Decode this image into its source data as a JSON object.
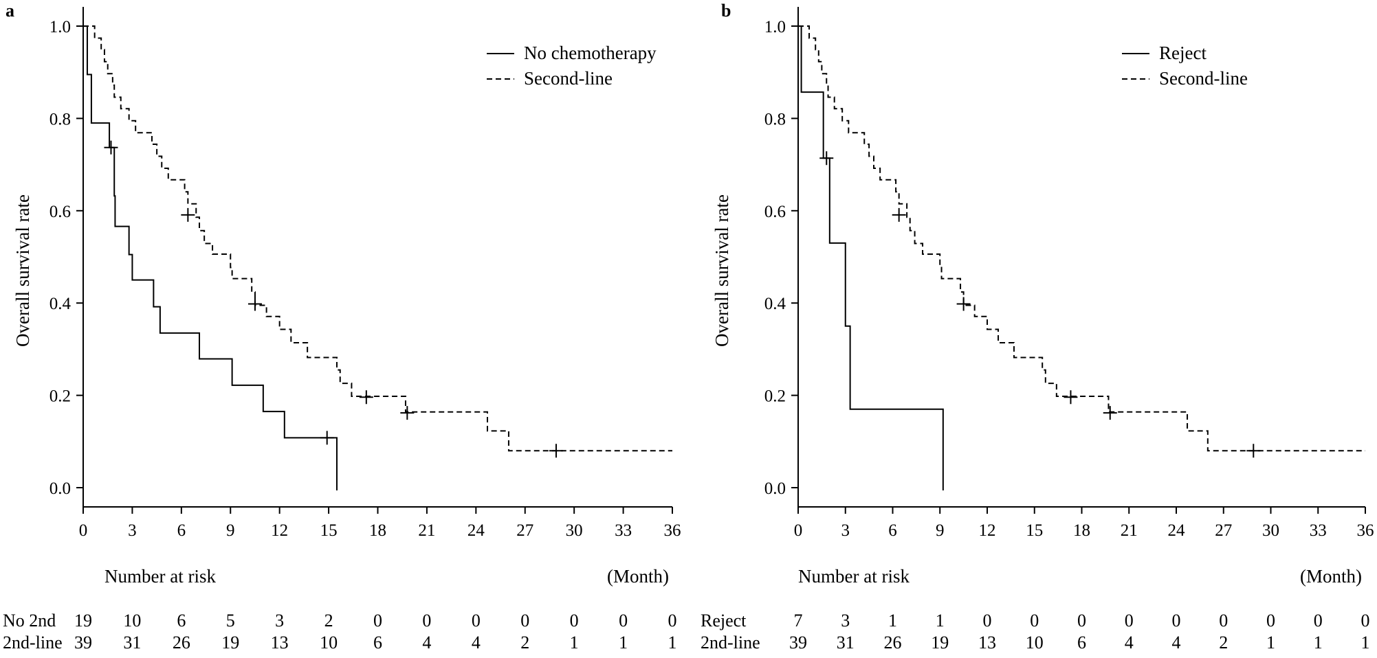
{
  "chart_data": [
    {
      "type": "line",
      "subtype": "kaplan-meier",
      "panel": "a",
      "ylabel": "Overall survival rate",
      "xunit": "(Month)",
      "xlim": [
        0,
        36
      ],
      "ylim": [
        0.0,
        1.0
      ],
      "xticks": [
        "0",
        "3",
        "6",
        "9",
        "12",
        "15",
        "18",
        "21",
        "24",
        "27",
        "30",
        "33",
        "36"
      ],
      "yticks": [
        "0.0",
        "0.2",
        "0.4",
        "0.6",
        "0.8",
        "1.0"
      ],
      "series": [
        {
          "name": "No chemotherapy",
          "style": "solid",
          "steps": [
            [
              0,
              1.0
            ],
            [
              0.25,
              0.895
            ],
            [
              0.5,
              0.79
            ],
            [
              1.6,
              0.737
            ],
            [
              1.9,
              0.632
            ],
            [
              1.95,
              0.566
            ],
            [
              2.8,
              0.505
            ],
            [
              3.0,
              0.45
            ],
            [
              4.3,
              0.392
            ],
            [
              4.7,
              0.335
            ],
            [
              7.1,
              0.279
            ],
            [
              9.1,
              0.222
            ],
            [
              11.0,
              0.165
            ],
            [
              12.3,
              0.108
            ],
            [
              15.5,
              0.0
            ]
          ],
          "censor": [
            [
              1.7,
              0.737
            ],
            [
              14.9,
              0.108
            ]
          ]
        },
        {
          "name": "Second-line",
          "style": "dashed",
          "steps": [
            [
              0,
              1.0
            ],
            [
              0.5,
              1.0
            ],
            [
              0.7,
              0.974
            ],
            [
              1.1,
              0.949
            ],
            [
              1.3,
              0.923
            ],
            [
              1.5,
              0.897
            ],
            [
              1.8,
              0.872
            ],
            [
              1.9,
              0.846
            ],
            [
              2.3,
              0.821
            ],
            [
              2.8,
              0.795
            ],
            [
              3.2,
              0.769
            ],
            [
              4.2,
              0.744
            ],
            [
              4.5,
              0.718
            ],
            [
              4.8,
              0.692
            ],
            [
              5.2,
              0.667
            ],
            [
              6.2,
              0.641
            ],
            [
              6.4,
              0.615
            ],
            [
              6.9,
              0.586
            ],
            [
              7.1,
              0.557
            ],
            [
              7.4,
              0.529
            ],
            [
              7.9,
              0.506
            ],
            [
              9.0,
              0.477
            ],
            [
              9.1,
              0.453
            ],
            [
              10.3,
              0.424
            ],
            [
              10.5,
              0.395
            ],
            [
              11.2,
              0.371
            ],
            [
              12.0,
              0.343
            ],
            [
              12.7,
              0.314
            ],
            [
              13.7,
              0.282
            ],
            [
              15.5,
              0.255
            ],
            [
              15.7,
              0.226
            ],
            [
              16.4,
              0.198
            ],
            [
              19.7,
              0.164
            ],
            [
              24.7,
              0.123
            ],
            [
              26.0,
              0.08
            ],
            [
              36,
              0.08
            ]
          ],
          "censor": [
            [
              6.4,
              0.591
            ],
            [
              10.5,
              0.398
            ],
            [
              17.3,
              0.196
            ],
            [
              19.8,
              0.162
            ],
            [
              28.9,
              0.08
            ]
          ]
        }
      ],
      "risk_table": {
        "title": "Number at risk",
        "rows": [
          {
            "label": "No 2nd",
            "values": [
              "19",
              "10",
              "6",
              "5",
              "3",
              "2",
              "0",
              "0",
              "0",
              "0",
              "0",
              "0",
              "0"
            ]
          },
          {
            "label": "2nd-line",
            "values": [
              "39",
              "31",
              "26",
              "19",
              "13",
              "10",
              "6",
              "4",
              "4",
              "2",
              "1",
              "1",
              "1"
            ]
          }
        ]
      }
    },
    {
      "type": "line",
      "subtype": "kaplan-meier",
      "panel": "b",
      "ylabel": "Overall survival rate",
      "xunit": "(Month)",
      "xlim": [
        0,
        36
      ],
      "ylim": [
        0.0,
        1.0
      ],
      "xticks": [
        "0",
        "3",
        "6",
        "9",
        "12",
        "15",
        "18",
        "21",
        "24",
        "27",
        "30",
        "33",
        "36"
      ],
      "yticks": [
        "0.0",
        "0.2",
        "0.4",
        "0.6",
        "0.8",
        "1.0"
      ],
      "series": [
        {
          "name": "Reject",
          "style": "solid",
          "steps": [
            [
              0,
              1.0
            ],
            [
              0.2,
              0.857
            ],
            [
              1.6,
              0.714
            ],
            [
              2.0,
              0.53
            ],
            [
              3.0,
              0.35
            ],
            [
              3.3,
              0.17
            ],
            [
              9.2,
              0.0
            ]
          ],
          "censor": [
            [
              1.8,
              0.714
            ]
          ]
        },
        {
          "name": "Second-line",
          "style": "dashed",
          "steps": [
            [
              0,
              1.0
            ],
            [
              0.5,
              1.0
            ],
            [
              0.7,
              0.974
            ],
            [
              1.1,
              0.949
            ],
            [
              1.3,
              0.923
            ],
            [
              1.5,
              0.897
            ],
            [
              1.8,
              0.872
            ],
            [
              1.9,
              0.846
            ],
            [
              2.3,
              0.821
            ],
            [
              2.8,
              0.795
            ],
            [
              3.2,
              0.769
            ],
            [
              4.2,
              0.744
            ],
            [
              4.5,
              0.718
            ],
            [
              4.8,
              0.692
            ],
            [
              5.2,
              0.667
            ],
            [
              6.2,
              0.641
            ],
            [
              6.4,
              0.615
            ],
            [
              6.9,
              0.586
            ],
            [
              7.1,
              0.557
            ],
            [
              7.4,
              0.529
            ],
            [
              7.9,
              0.506
            ],
            [
              9.0,
              0.477
            ],
            [
              9.1,
              0.453
            ],
            [
              10.3,
              0.424
            ],
            [
              10.5,
              0.395
            ],
            [
              11.2,
              0.371
            ],
            [
              12.0,
              0.343
            ],
            [
              12.7,
              0.314
            ],
            [
              13.7,
              0.282
            ],
            [
              15.5,
              0.255
            ],
            [
              15.7,
              0.226
            ],
            [
              16.4,
              0.198
            ],
            [
              19.7,
              0.164
            ],
            [
              24.7,
              0.123
            ],
            [
              26.0,
              0.08
            ],
            [
              36,
              0.08
            ]
          ],
          "censor": [
            [
              6.4,
              0.591
            ],
            [
              10.5,
              0.398
            ],
            [
              17.3,
              0.196
            ],
            [
              19.8,
              0.162
            ],
            [
              28.9,
              0.08
            ]
          ]
        }
      ],
      "risk_table": {
        "title": "Number at risk",
        "rows": [
          {
            "label": "Reject",
            "values": [
              "7",
              "3",
              "1",
              "1",
              "0",
              "0",
              "0",
              "0",
              "0",
              "0",
              "0",
              "0",
              "0"
            ]
          },
          {
            "label": "2nd-line",
            "values": [
              "39",
              "31",
              "26",
              "19",
              "13",
              "10",
              "6",
              "4",
              "4",
              "2",
              "1",
              "1",
              "1"
            ]
          }
        ]
      }
    }
  ]
}
